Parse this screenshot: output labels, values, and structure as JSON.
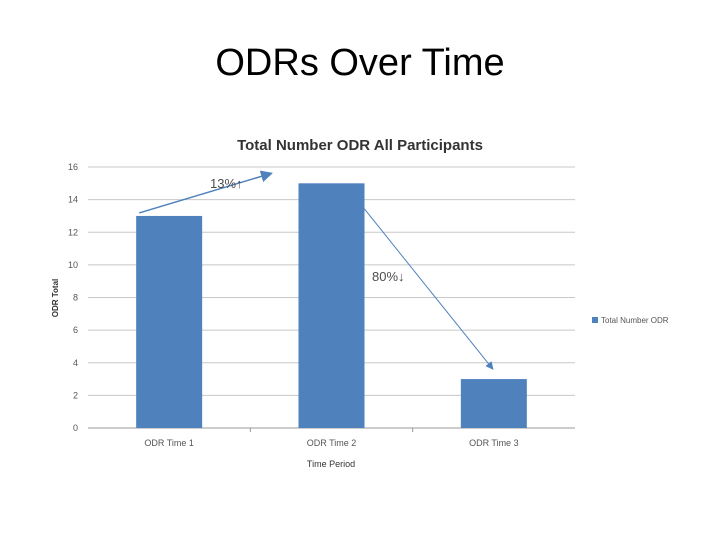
{
  "slide": {
    "title": "ODRs Over Time"
  },
  "chart_data": {
    "type": "bar",
    "title": "Total Number ODR All Participants",
    "xlabel": "Time Period",
    "ylabel": "ODR Total",
    "categories": [
      "ODR Time 1",
      "ODR Time 2",
      "ODR Time 3"
    ],
    "series": [
      {
        "name": "Total Number ODR",
        "values": [
          13,
          15,
          3
        ],
        "color": "#4f81bd"
      }
    ],
    "ylim": [
      0,
      16
    ],
    "yticks": [
      0,
      2,
      4,
      6,
      8,
      10,
      12,
      14,
      16
    ],
    "grid": true,
    "legend": "right",
    "annotations": [
      {
        "text": "13%↑"
      },
      {
        "text": "80%↓"
      }
    ],
    "colors": {
      "bar": "#4f81bd",
      "arrow": "#4f81bd",
      "grid": "#c8c8c8"
    }
  }
}
